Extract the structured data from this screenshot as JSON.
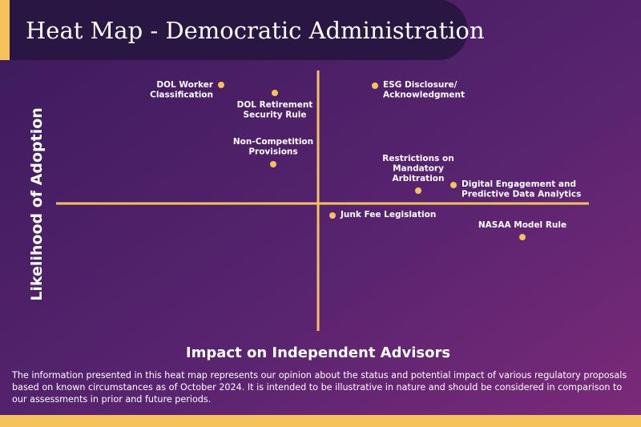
{
  "header": {
    "title": "Heat Map - Democratic Administration"
  },
  "axes": {
    "y_label": "Likelihood of Adoption",
    "x_label": "Impact on Independent Advisors"
  },
  "nodes": [
    {
      "label": [
        "DOL Worker",
        "Classification"
      ]
    },
    {
      "label": [
        "DOL Retirement",
        "Security Rule"
      ]
    },
    {
      "label": [
        "Non-Competition",
        "Provisions"
      ]
    },
    {
      "label": [
        "ESG Disclosure/",
        "Acknowledgment"
      ]
    },
    {
      "label": [
        "Restrictions on",
        "Mandatory",
        "Arbitration"
      ]
    },
    {
      "label": [
        "Digital Engagement and",
        "Predictive Data Analytics"
      ]
    },
    {
      "label": [
        "Junk Fee Legislation"
      ]
    },
    {
      "label": [
        "NASAA Model Rule"
      ]
    }
  ],
  "footer": {
    "lines": [
      "The information presented in this heat map represents our opinion about the status and potential impact of various regulatory proposals",
      "based on known circumstances as of October 2024.  It is intended to be illustrative in nature and should be considered in comparison to",
      "our assessments in prior and future periods."
    ]
  }
}
